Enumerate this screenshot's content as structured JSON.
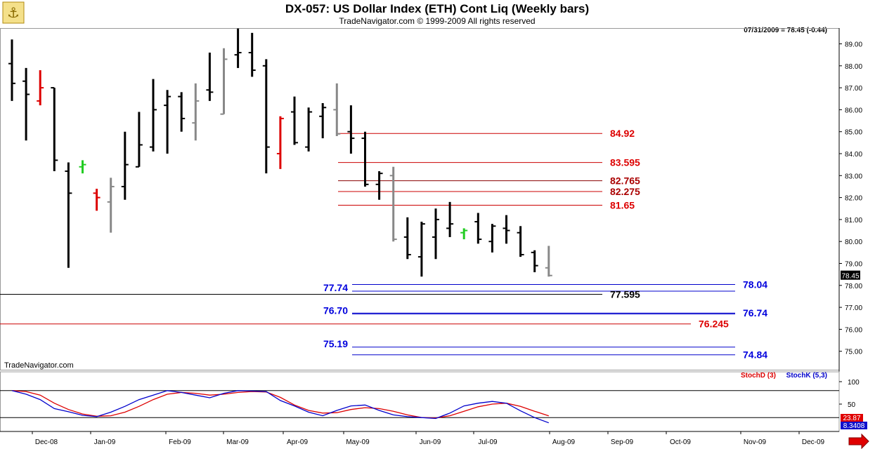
{
  "header": {
    "title": "DX-057:  US Dollar Index (ETH) Cont Liq  (Weekly bars)",
    "subtitle": "TradeNavigator.com © 1999-2009 All rights reserved",
    "quote": "07/31/2009 = 78.45 (-0.44)",
    "watermark": "TradeNavigator.com"
  },
  "chart_data": [
    {
      "type": "ohlc",
      "ylim": [
        74.5,
        89.5
      ],
      "y_ticks": [
        "75.00",
        "76.00",
        "77.00",
        "78.00",
        "79.00",
        "80.00",
        "81.00",
        "82.00",
        "83.00",
        "84.00",
        "85.00",
        "86.00",
        "87.00",
        "88.00",
        "89.00"
      ],
      "x_labels": [
        "Dec-08",
        "Jan-09",
        "Feb-09",
        "Mar-09",
        "Apr-09",
        "May-09",
        "Jun-09",
        "Jul-09",
        "Aug-09",
        "Sep-09",
        "Oct-09",
        "Nov-09",
        "Dec-09"
      ],
      "last_price_label": "78.45",
      "colors": {
        "up": "#000000",
        "down_gray": "#888888",
        "red": "#dd0000",
        "green": "#22cc22",
        "support": "#0000cc",
        "resistance": "#cc0000"
      },
      "bars": [
        {
          "o": 88.1,
          "h": 89.2,
          "l": 86.4,
          "c": 87.2,
          "color": "#000000"
        },
        {
          "o": 87.3,
          "h": 87.9,
          "l": 84.6,
          "c": 86.7,
          "color": "#000000"
        },
        {
          "o": 86.4,
          "h": 87.8,
          "l": 86.2,
          "c": 87.0,
          "color": "#dd0000"
        },
        {
          "o": 87.0,
          "h": 87.0,
          "l": 83.2,
          "c": 83.7,
          "color": "#000000"
        },
        {
          "o": 83.2,
          "h": 83.6,
          "l": 78.8,
          "c": 82.2,
          "color": "#000000"
        },
        {
          "o": 83.4,
          "h": 83.7,
          "l": 83.1,
          "c": 83.5,
          "color": "#22cc22"
        },
        {
          "o": 82.2,
          "h": 82.4,
          "l": 81.4,
          "c": 82.0,
          "color": "#dd0000"
        },
        {
          "o": 81.8,
          "h": 82.9,
          "l": 80.4,
          "c": 82.5,
          "color": "#888888"
        },
        {
          "o": 82.5,
          "h": 85.0,
          "l": 81.9,
          "c": 83.5,
          "color": "#000000"
        },
        {
          "o": 83.4,
          "h": 85.9,
          "l": 83.4,
          "c": 84.4,
          "color": "#000000"
        },
        {
          "o": 84.3,
          "h": 87.4,
          "l": 84.1,
          "c": 86.0,
          "color": "#000000"
        },
        {
          "o": 86.2,
          "h": 86.9,
          "l": 84.0,
          "c": 86.6,
          "color": "#000000"
        },
        {
          "o": 86.6,
          "h": 86.8,
          "l": 85.0,
          "c": 85.6,
          "color": "#000000"
        },
        {
          "o": 85.4,
          "h": 87.2,
          "l": 84.6,
          "c": 86.4,
          "color": "#888888"
        },
        {
          "o": 86.9,
          "h": 88.6,
          "l": 86.4,
          "c": 86.8,
          "color": "#000000"
        },
        {
          "o": 85.8,
          "h": 88.8,
          "l": 85.8,
          "c": 88.3,
          "color": "#888888"
        },
        {
          "o": 88.5,
          "h": 89.7,
          "l": 87.9,
          "c": 88.6,
          "color": "#000000"
        },
        {
          "o": 88.6,
          "h": 89.5,
          "l": 87.5,
          "c": 87.8,
          "color": "#000000"
        },
        {
          "o": 88.0,
          "h": 88.3,
          "l": 83.1,
          "c": 84.3,
          "color": "#000000"
        },
        {
          "o": 84.0,
          "h": 85.7,
          "l": 83.3,
          "c": 85.6,
          "color": "#dd0000"
        },
        {
          "o": 85.9,
          "h": 86.6,
          "l": 84.4,
          "c": 84.5,
          "color": "#000000"
        },
        {
          "o": 84.3,
          "h": 86.1,
          "l": 84.1,
          "c": 85.9,
          "color": "#000000"
        },
        {
          "o": 85.7,
          "h": 86.3,
          "l": 84.7,
          "c": 86.1,
          "color": "#000000"
        },
        {
          "o": 86.0,
          "h": 87.2,
          "l": 84.8,
          "c": 84.9,
          "color": "#888888"
        },
        {
          "o": 85.0,
          "h": 86.2,
          "l": 84.0,
          "c": 84.7,
          "color": "#000000"
        },
        {
          "o": 84.7,
          "h": 85.0,
          "l": 82.5,
          "c": 82.6,
          "color": "#000000"
        },
        {
          "o": 82.6,
          "h": 83.2,
          "l": 81.9,
          "c": 83.1,
          "color": "#000000"
        },
        {
          "o": 83.0,
          "h": 83.4,
          "l": 80.0,
          "c": 80.1,
          "color": "#888888"
        },
        {
          "o": 80.2,
          "h": 81.1,
          "l": 79.2,
          "c": 79.4,
          "color": "#000000"
        },
        {
          "o": 79.3,
          "h": 80.9,
          "l": 78.4,
          "c": 80.8,
          "color": "#000000"
        },
        {
          "o": 80.2,
          "h": 81.5,
          "l": 79.2,
          "c": 81.0,
          "color": "#000000"
        },
        {
          "o": 80.6,
          "h": 81.8,
          "l": 80.2,
          "c": 80.8,
          "color": "#000000"
        },
        {
          "o": 80.4,
          "h": 80.6,
          "l": 80.1,
          "c": 80.5,
          "color": "#22cc22"
        },
        {
          "o": 80.9,
          "h": 81.3,
          "l": 79.9,
          "c": 80.1,
          "color": "#000000"
        },
        {
          "o": 80.0,
          "h": 80.8,
          "l": 79.5,
          "c": 80.7,
          "color": "#000000"
        },
        {
          "o": 80.6,
          "h": 81.2,
          "l": 79.9,
          "c": 80.5,
          "color": "#000000"
        },
        {
          "o": 80.4,
          "h": 80.7,
          "l": 79.3,
          "c": 79.4,
          "color": "#000000"
        },
        {
          "o": 79.5,
          "h": 79.6,
          "l": 78.6,
          "c": 78.9,
          "color": "#000000"
        },
        {
          "o": 78.8,
          "h": 79.8,
          "l": 78.4,
          "c": 78.45,
          "color": "#888888"
        }
      ],
      "levels": [
        {
          "value": 84.92,
          "label": "84.92",
          "color": "#cc0000",
          "text_color": "#dd0000"
        },
        {
          "value": 83.595,
          "label": "83.595",
          "color": "#cc0000",
          "text_color": "#dd0000"
        },
        {
          "value": 82.765,
          "label": "82.765",
          "color": "#880000",
          "text_color": "#aa0000"
        },
        {
          "value": 82.275,
          "label": "82.275",
          "color": "#cc0000",
          "text_color": "#aa0000"
        },
        {
          "value": 81.65,
          "label": "81.65",
          "color": "#cc0000",
          "text_color": "#dd0000"
        },
        {
          "value": 78.04,
          "label": "78.04",
          "color": "#0000cc",
          "text_color": "#0000dd"
        },
        {
          "value": 77.74,
          "label": "77.74",
          "color": "#0000cc",
          "text_color": "#0000dd"
        },
        {
          "value": 77.595,
          "label": "77.595",
          "color": "#000000",
          "text_color": "#000000"
        },
        {
          "value": 76.74,
          "label": "76.74",
          "color": "#0000cc",
          "text_color": "#0000dd"
        },
        {
          "value": 76.7,
          "label": "76.70",
          "color": "#0000cc",
          "text_color": "#0000dd"
        },
        {
          "value": 76.245,
          "label": "76.245",
          "color": "#cc0000",
          "text_color": "#dd0000"
        },
        {
          "value": 75.19,
          "label": "75.19",
          "color": "#0000cc",
          "text_color": "#0000dd"
        },
        {
          "value": 74.84,
          "label": "74.84",
          "color": "#0000cc",
          "text_color": "#0000dd"
        }
      ]
    },
    {
      "type": "line",
      "ylim": [
        0,
        110
      ],
      "y_ticks": [
        "100",
        "50"
      ],
      "reference_levels": [
        80,
        20
      ],
      "current_values": {
        "stoch_d": "23.87",
        "stoch_k": "8.3408"
      },
      "series": [
        {
          "name": "StochD (3)",
          "color": "#dd0000",
          "values": [
            80,
            78,
            70,
            52,
            38,
            28,
            23,
            24,
            32,
            45,
            60,
            72,
            76,
            74,
            70,
            72,
            76,
            78,
            77,
            65,
            48,
            36,
            30,
            31,
            38,
            42,
            40,
            34,
            26,
            20,
            19,
            24,
            34,
            44,
            50,
            52,
            45,
            34,
            23.87
          ]
        },
        {
          "name": "StochK (5,3)",
          "color": "#0000cc",
          "values": [
            80,
            72,
            60,
            40,
            33,
            25,
            22,
            32,
            45,
            60,
            70,
            80,
            76,
            70,
            64,
            74,
            80,
            79,
            78,
            58,
            46,
            32,
            24,
            36,
            46,
            48,
            36,
            26,
            22,
            20,
            18,
            30,
            46,
            52,
            56,
            52,
            35,
            20,
            8.3408
          ]
        }
      ]
    }
  ]
}
